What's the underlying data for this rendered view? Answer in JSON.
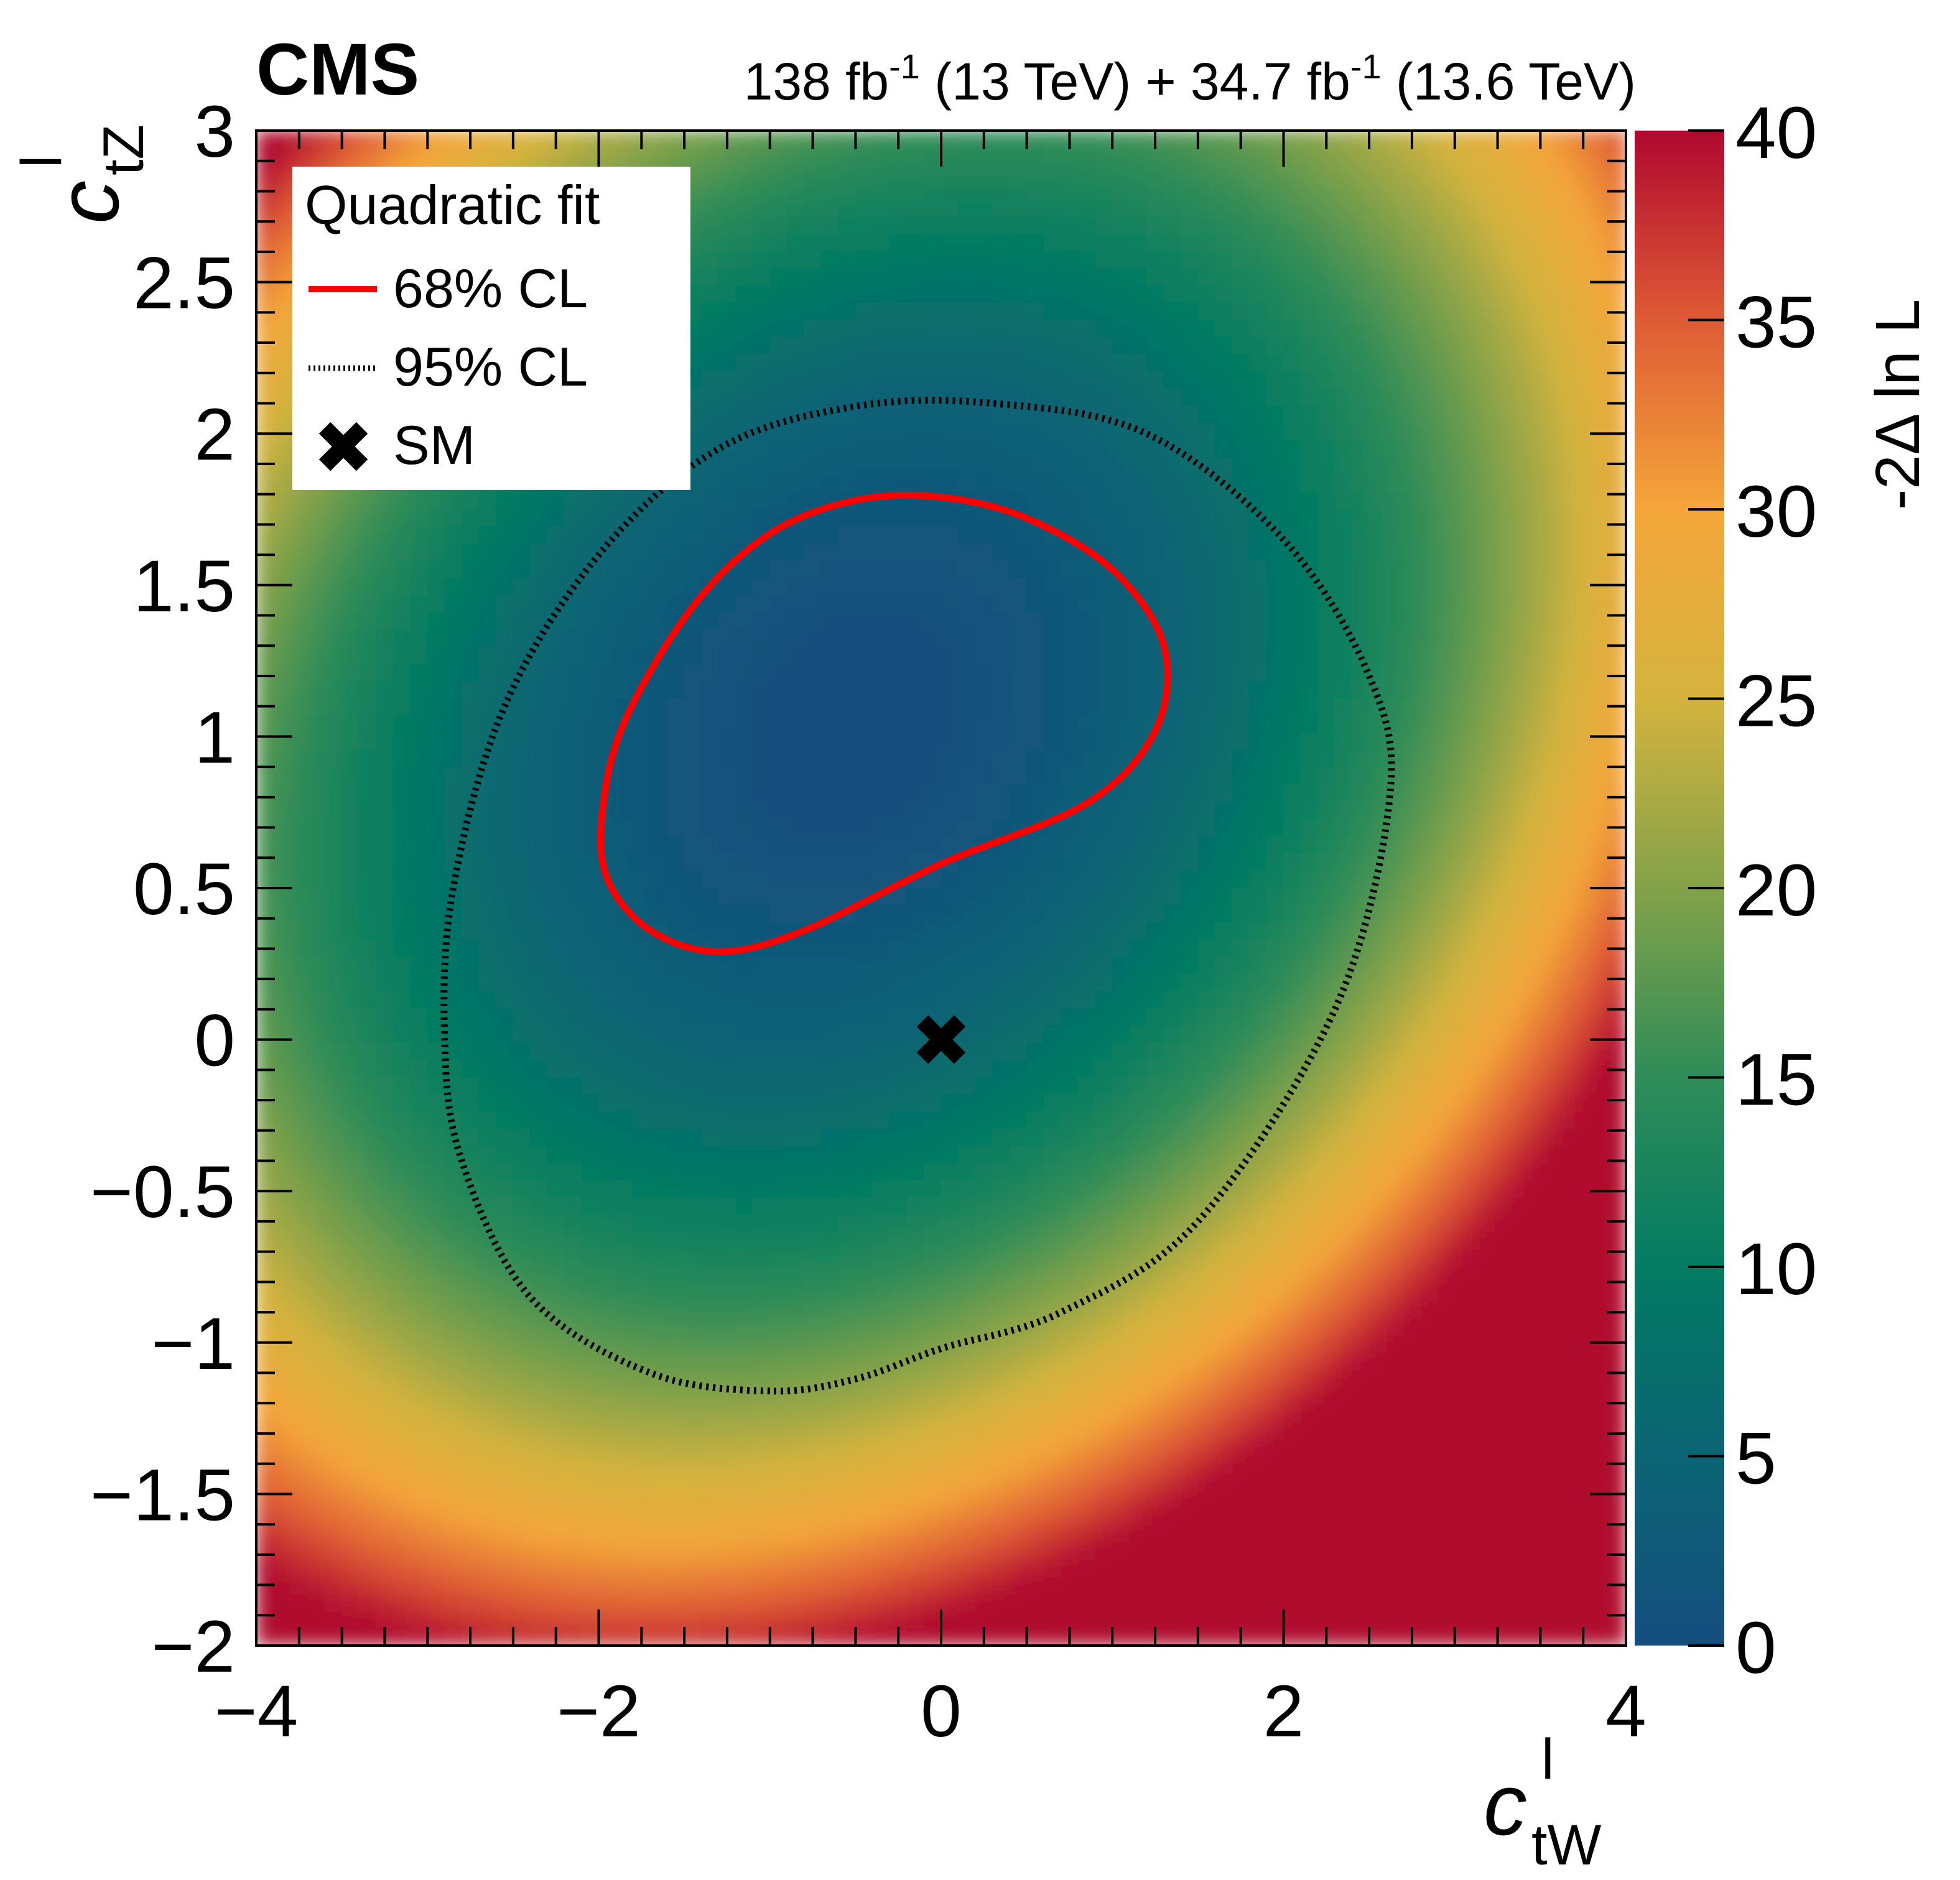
{
  "header": {
    "experiment": "CMS",
    "lumi_parts": [
      "138 fb",
      "-1",
      " (13 TeV) + 34.7 fb",
      "-1",
      " (13.6 TeV)"
    ]
  },
  "chart_data": {
    "type": "heatmap",
    "title": "",
    "xaxis": {
      "label_main": "c",
      "label_sup": "l",
      "label_sub": "tW",
      "range": [
        -4,
        4
      ],
      "ticks": [
        -4,
        -2,
        0,
        2,
        4
      ],
      "tick_labels": [
        "−4",
        "−2",
        "0",
        "2",
        "4"
      ]
    },
    "yaxis": {
      "label_main": "c",
      "label_sup": "l",
      "label_sub": "tZ",
      "range": [
        -2,
        3
      ],
      "ticks": [
        -2,
        -1.5,
        -1,
        -0.5,
        0,
        0.5,
        1,
        1.5,
        2,
        2.5,
        3
      ],
      "tick_labels": [
        "−2",
        "−1.5",
        "−1",
        "−0.5",
        "0",
        "0.5",
        "1",
        "1.5",
        "2",
        "2.5",
        "3"
      ]
    },
    "zaxis": {
      "label": "-2Δ ln L",
      "range": [
        0,
        40
      ],
      "ticks": [
        0,
        5,
        10,
        15,
        20,
        25,
        30,
        35,
        40
      ],
      "tick_labels": [
        "0",
        "5",
        "10",
        "15",
        "20",
        "25",
        "30",
        "35",
        "40"
      ]
    },
    "colorscale": [
      {
        "value": 0,
        "color": "#154e7e"
      },
      {
        "value": 5,
        "color": "#0b6474"
      },
      {
        "value": 10,
        "color": "#037b62"
      },
      {
        "value": 15,
        "color": "#2f8c58"
      },
      {
        "value": 20,
        "color": "#83a249"
      },
      {
        "value": 25,
        "color": "#d4b33e"
      },
      {
        "value": 30,
        "color": "#f4a63a"
      },
      {
        "value": 35,
        "color": "#de5b35"
      },
      {
        "value": 40,
        "color": "#b0082f"
      }
    ],
    "best_fit": {
      "x": -0.5,
      "y": 1.05
    },
    "legend": {
      "title": "Quadratic fit",
      "position": "top-left",
      "entries": [
        {
          "label": "68% CL",
          "style": "solid",
          "color": "#ff0000"
        },
        {
          "label": "95% CL",
          "style": "dotted",
          "color": "#000000"
        },
        {
          "label": "SM",
          "style": "marker-x",
          "color": "#000000"
        }
      ]
    },
    "contours": [
      {
        "name": "68% CL",
        "color": "#ff0000",
        "points": [
          [
            -1.3,
            0.29
          ],
          [
            -1.7,
            0.36
          ],
          [
            -1.95,
            0.53
          ],
          [
            -1.98,
            0.75
          ],
          [
            -1.85,
            1.05
          ],
          [
            -1.45,
            1.43
          ],
          [
            -1.0,
            1.67
          ],
          [
            -0.5,
            1.78
          ],
          [
            0.0,
            1.79
          ],
          [
            0.5,
            1.72
          ],
          [
            1.0,
            1.55
          ],
          [
            1.3,
            1.3
          ],
          [
            1.25,
            1.02
          ],
          [
            0.85,
            0.78
          ],
          [
            0.0,
            0.58
          ],
          [
            -0.8,
            0.36
          ],
          [
            -1.3,
            0.29
          ]
        ]
      },
      {
        "name": "95% CL",
        "color": "#000000",
        "points": [
          [
            -1.0,
            -1.16
          ],
          [
            -1.7,
            -1.1
          ],
          [
            -2.4,
            -0.85
          ],
          [
            -2.8,
            -0.4
          ],
          [
            -2.9,
            0.0
          ],
          [
            -2.85,
            0.5
          ],
          [
            -2.55,
            1.1
          ],
          [
            -2.0,
            1.6
          ],
          [
            -1.3,
            1.95
          ],
          [
            -0.5,
            2.09
          ],
          [
            0.3,
            2.1
          ],
          [
            1.2,
            2.0
          ],
          [
            2.0,
            1.65
          ],
          [
            2.5,
            1.2
          ],
          [
            2.62,
            0.8
          ],
          [
            2.3,
            0.1
          ],
          [
            1.5,
            -0.6
          ],
          [
            0.7,
            -0.9
          ],
          [
            0.0,
            -1.02
          ],
          [
            -0.5,
            -1.12
          ],
          [
            -1.0,
            -1.16
          ]
        ]
      }
    ],
    "sm_point": {
      "x": 0,
      "y": 0,
      "label": "SM"
    }
  }
}
